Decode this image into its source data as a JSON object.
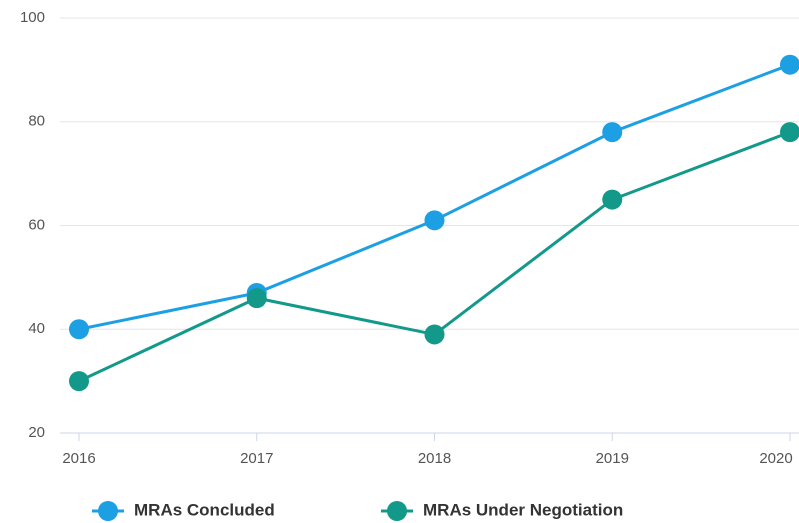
{
  "chart_data": {
    "type": "line",
    "categories": [
      "2016",
      "2017",
      "2018",
      "2019",
      "2020"
    ],
    "series": [
      {
        "name": "MRAs Concluded",
        "color": "#1d9fe3",
        "values": [
          40,
          47,
          61,
          78,
          91
        ]
      },
      {
        "name": "MRAs Under Negotiation",
        "color": "#12998a",
        "values": [
          30,
          46,
          39,
          65,
          78
        ]
      }
    ],
    "ylim": [
      20,
      100
    ],
    "yticks": [
      20,
      40,
      60,
      80,
      100
    ],
    "grid": true
  }
}
